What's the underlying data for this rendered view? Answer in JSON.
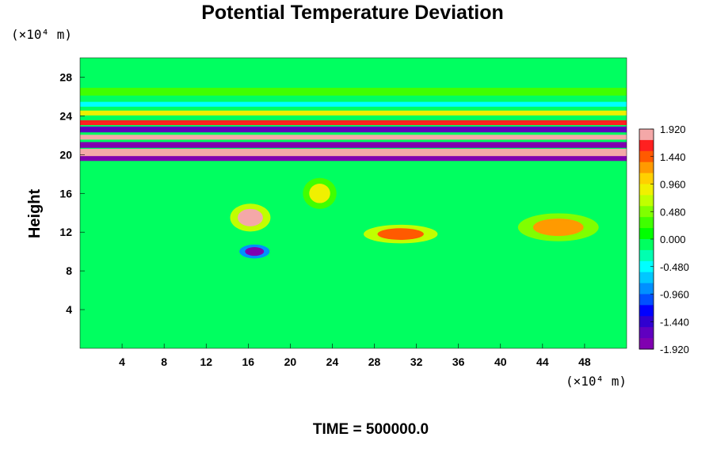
{
  "chart_data": {
    "type": "heatmap",
    "title": "Potential Temperature Deviation",
    "xlabel": "",
    "ylabel": "Height",
    "x_unit": "(×10⁴ m)",
    "y_unit": "(×10⁴ m)",
    "footer": "TIME = 500000.0",
    "xlim": [
      0,
      52
    ],
    "ylim": [
      0,
      30
    ],
    "x_ticks": [
      4,
      8,
      12,
      16,
      20,
      24,
      28,
      32,
      36,
      40,
      44,
      48
    ],
    "x_tick_labels": [
      "4",
      "8",
      "12",
      "16",
      "20",
      "24",
      "28",
      "32",
      "36",
      "40",
      "44",
      "48"
    ],
    "y_ticks": [
      4,
      8,
      12,
      16,
      20,
      24,
      28
    ],
    "y_tick_labels": [
      "4",
      "8",
      "12",
      "16",
      "20",
      "24",
      "28"
    ],
    "colorbar": {
      "range": [
        -1.92,
        1.92
      ],
      "tick_values": [
        1.92,
        1.44,
        0.96,
        0.48,
        0.0,
        -0.48,
        -0.96,
        -1.44,
        -1.92
      ],
      "tick_labels": [
        "1.920",
        "1.440",
        "0.960",
        "0.480",
        "0.000",
        "-0.480",
        "-0.960",
        "-1.440",
        "-1.920"
      ],
      "colors_top_to_bottom": [
        "#f4a8a8",
        "#ff2020",
        "#ff5a00",
        "#ff9a00",
        "#ffd000",
        "#f0f000",
        "#c0ff00",
        "#80ff00",
        "#40ff00",
        "#00ff00",
        "#00ff60",
        "#00ffb0",
        "#00ffff",
        "#00c8ff",
        "#0090ff",
        "#0050ff",
        "#0000ff",
        "#3000d0",
        "#6000c0",
        "#8000b0"
      ]
    },
    "background_value": 0.0,
    "bands": [
      {
        "y_center": 20.2,
        "thickness": 0.8,
        "value": 1.92
      },
      {
        "y_center": 19.6,
        "thickness": 0.5,
        "value": -1.92
      },
      {
        "y_center": 21.0,
        "thickness": 0.6,
        "value": -1.92
      },
      {
        "y_center": 21.8,
        "thickness": 0.5,
        "value": 1.92
      },
      {
        "y_center": 22.6,
        "thickness": 0.6,
        "value": -1.7
      },
      {
        "y_center": 23.3,
        "thickness": 0.5,
        "value": 1.6
      },
      {
        "y_center": 24.3,
        "thickness": 0.5,
        "value": 0.9
      },
      {
        "y_center": 25.2,
        "thickness": 0.5,
        "value": -0.4
      },
      {
        "y_center": 26.5,
        "thickness": 0.8,
        "value": 0.25
      }
    ],
    "features": [
      {
        "x": 16.2,
        "y": 13.5,
        "rx": 1.2,
        "ry": 0.9,
        "value": 1.92
      },
      {
        "x": 16.6,
        "y": 10.0,
        "rx": 0.9,
        "ry": 0.45,
        "value": -1.92
      },
      {
        "x": 22.8,
        "y": 16.0,
        "rx": 1.0,
        "ry": 1.0,
        "value": 0.9
      },
      {
        "x": 30.5,
        "y": 11.8,
        "rx": 2.2,
        "ry": 0.6,
        "value": 1.5
      },
      {
        "x": 45.5,
        "y": 12.5,
        "rx": 2.4,
        "ry": 0.9,
        "value": 1.3
      }
    ]
  }
}
